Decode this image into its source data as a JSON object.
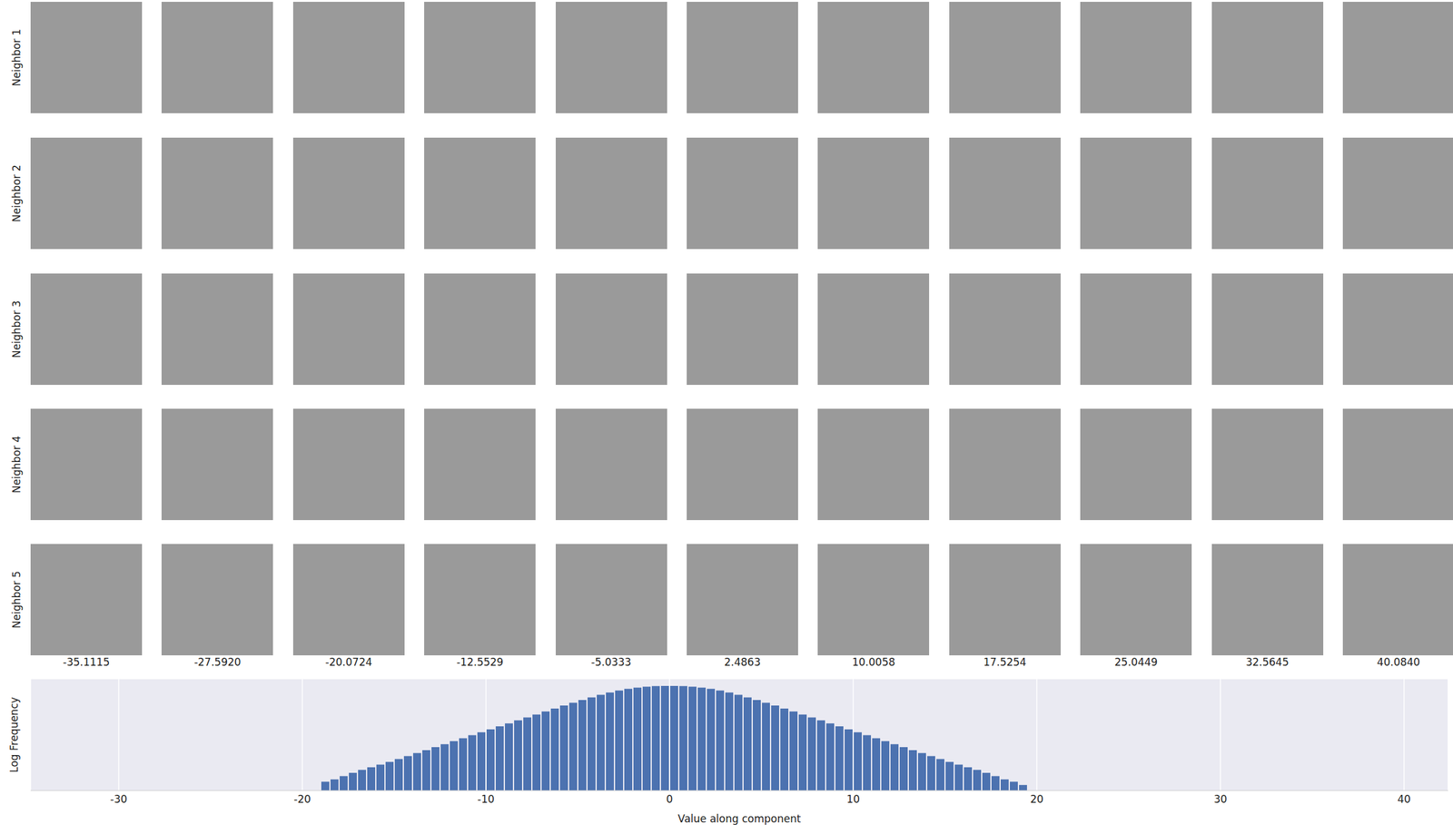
{
  "chart_data": {
    "type": "histogram",
    "xlabel": "Value along component",
    "ylabel": "Log Frequency",
    "bins": [
      -19.5,
      -19,
      -18.5,
      -18,
      -17.5,
      -17,
      -16.5,
      -16,
      -15.5,
      -15,
      -14.5,
      -14,
      -13.5,
      -13,
      -12.5,
      -12,
      -11.5,
      -11,
      -10.5,
      -10,
      -9.5,
      -9,
      -8.5,
      -8,
      -7.5,
      -7,
      -6.5,
      -6,
      -5.5,
      -5,
      -4.5,
      -4,
      -3.5,
      -3,
      -2.5,
      -2,
      -1.5,
      -1,
      -0.5,
      0,
      0.5,
      1,
      1.5,
      2,
      2.5,
      3,
      3.5,
      4,
      4.5,
      5,
      5.5,
      6,
      6.5,
      7,
      7.5,
      8,
      8.5,
      9,
      9.5,
      10,
      10.5,
      11,
      11.5,
      12,
      12.5,
      13,
      13.5,
      14,
      14.5,
      15,
      15.5,
      16,
      16.5,
      17,
      17.5,
      18,
      18.5,
      19,
      19.5
    ],
    "counts": [
      1,
      3,
      4,
      6,
      9,
      13,
      18,
      25,
      35,
      50,
      72,
      105,
      151,
      219,
      316,
      457,
      661,
      955,
      1380,
      1995,
      2884,
      4169,
      6026,
      8710,
      12589,
      18197,
      26303,
      38019,
      53703,
      75858,
      104713,
      144544,
      190546,
      245471,
      301995,
      354813,
      398107,
      426580,
      436516,
      436516,
      426580,
      398107,
      354813,
      301995,
      245471,
      190546,
      144544,
      104713,
      75858,
      53703,
      38019,
      26303,
      18197,
      12589,
      8710,
      6026,
      4169,
      2884,
      1995,
      1380,
      955,
      661,
      457,
      316,
      219,
      151,
      105,
      72,
      50,
      35,
      25,
      18,
      13,
      9,
      6,
      4,
      3,
      2
    ],
    "color": "#4c72b0",
    "xlim": [
      -34.8,
      42.4
    ],
    "xticks": [
      -30,
      -20,
      -10,
      0,
      10,
      20,
      30,
      40
    ],
    "ylim": [
      1,
      1000000
    ],
    "log": "y",
    "grid": true,
    "tick_labels": "x"
  },
  "neighbor_grid": {
    "rows": [
      "Neighbor 1",
      "Neighbor 2",
      "Neighbor 3",
      "Neighbor 4",
      "Neighbor 5"
    ],
    "column_values": [
      -35.1115,
      -27.592,
      -20.0724,
      -12.5529,
      -5.0333,
      2.4863,
      10.0058,
      17.5254,
      25.0449,
      32.5645,
      40.084
    ]
  }
}
